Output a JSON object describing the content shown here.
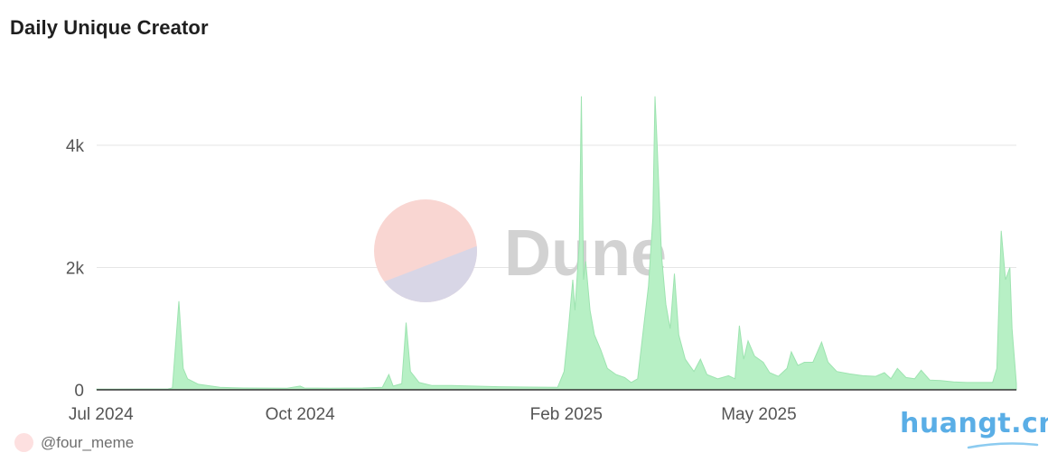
{
  "header": {
    "title": "Daily Unique Creator"
  },
  "watermark": {
    "text": "Dune"
  },
  "footer": {
    "username": "@four_meme",
    "brand": "huangt.cn"
  },
  "colors": {
    "area_fill": "#b7f0c5",
    "area_stroke": "#9de3b0",
    "grid": "#e6e6e6",
    "axis_text": "#555555",
    "watermark_circle_top": "#f9d6d2",
    "watermark_circle_bottom": "#d8d6e6",
    "brand": "#5aaee6"
  },
  "chart_data": {
    "type": "area",
    "title": "Daily Unique Creator",
    "xlabel": "",
    "ylabel": "",
    "x_range": [
      "2024-06-29",
      "2025-08-28"
    ],
    "ylim": [
      0,
      4900
    ],
    "y_ticks": [
      0,
      2000,
      4000
    ],
    "y_tick_labels": [
      "0",
      "2k",
      "4k"
    ],
    "x_ticks": [
      "2024-07-01",
      "2024-10-01",
      "2025-02-01",
      "2025-05-01"
    ],
    "x_tick_labels": [
      "Jul 2024",
      "Oct 2024",
      "Feb 2025",
      "May 2025"
    ],
    "grid": true,
    "legend": "none",
    "series": [
      {
        "points": [
          [
            "2024-06-29",
            10
          ],
          [
            "2024-08-01",
            15
          ],
          [
            "2024-08-03",
            30
          ],
          [
            "2024-08-06",
            1450
          ],
          [
            "2024-08-08",
            350
          ],
          [
            "2024-08-10",
            180
          ],
          [
            "2024-08-15",
            90
          ],
          [
            "2024-08-25",
            40
          ],
          [
            "2024-09-05",
            30
          ],
          [
            "2024-09-25",
            25
          ],
          [
            "2024-10-01",
            60
          ],
          [
            "2024-10-03",
            30
          ],
          [
            "2024-10-15",
            25
          ],
          [
            "2024-10-30",
            30
          ],
          [
            "2024-11-08",
            40
          ],
          [
            "2024-11-11",
            250
          ],
          [
            "2024-11-13",
            60
          ],
          [
            "2024-11-17",
            100
          ],
          [
            "2024-11-19",
            1100
          ],
          [
            "2024-11-21",
            300
          ],
          [
            "2024-11-25",
            120
          ],
          [
            "2024-12-01",
            70
          ],
          [
            "2024-12-10",
            70
          ],
          [
            "2024-12-20",
            60
          ],
          [
            "2025-01-01",
            50
          ],
          [
            "2025-01-15",
            45
          ],
          [
            "2025-01-28",
            40
          ],
          [
            "2025-01-31",
            300
          ],
          [
            "2025-02-02",
            1000
          ],
          [
            "2025-02-04",
            1800
          ],
          [
            "2025-02-05",
            1300
          ],
          [
            "2025-02-07",
            2400
          ],
          [
            "2025-02-08",
            4800
          ],
          [
            "2025-02-09",
            1800
          ],
          [
            "2025-02-10",
            2100
          ],
          [
            "2025-02-12",
            1300
          ],
          [
            "2025-02-14",
            900
          ],
          [
            "2025-02-17",
            650
          ],
          [
            "2025-02-20",
            350
          ],
          [
            "2025-02-24",
            250
          ],
          [
            "2025-02-28",
            200
          ],
          [
            "2025-03-03",
            120
          ],
          [
            "2025-03-06",
            180
          ],
          [
            "2025-03-09",
            1100
          ],
          [
            "2025-03-11",
            1700
          ],
          [
            "2025-03-13",
            2800
          ],
          [
            "2025-03-14",
            4800
          ],
          [
            "2025-03-15",
            4000
          ],
          [
            "2025-03-17",
            2200
          ],
          [
            "2025-03-19",
            1400
          ],
          [
            "2025-03-21",
            1000
          ],
          [
            "2025-03-23",
            1900
          ],
          [
            "2025-03-25",
            900
          ],
          [
            "2025-03-28",
            500
          ],
          [
            "2025-04-01",
            300
          ],
          [
            "2025-04-04",
            500
          ],
          [
            "2025-04-07",
            250
          ],
          [
            "2025-04-12",
            180
          ],
          [
            "2025-04-17",
            230
          ],
          [
            "2025-04-20",
            180
          ],
          [
            "2025-04-22",
            1050
          ],
          [
            "2025-04-24",
            500
          ],
          [
            "2025-04-26",
            800
          ],
          [
            "2025-04-29",
            550
          ],
          [
            "2025-05-03",
            450
          ],
          [
            "2025-05-06",
            280
          ],
          [
            "2025-05-10",
            220
          ],
          [
            "2025-05-14",
            350
          ],
          [
            "2025-05-16",
            620
          ],
          [
            "2025-05-19",
            400
          ],
          [
            "2025-05-22",
            450
          ],
          [
            "2025-05-26",
            450
          ],
          [
            "2025-05-30",
            780
          ],
          [
            "2025-06-02",
            450
          ],
          [
            "2025-06-06",
            300
          ],
          [
            "2025-06-12",
            260
          ],
          [
            "2025-06-18",
            230
          ],
          [
            "2025-06-24",
            220
          ],
          [
            "2025-06-28",
            280
          ],
          [
            "2025-07-01",
            180
          ],
          [
            "2025-07-04",
            350
          ],
          [
            "2025-07-08",
            200
          ],
          [
            "2025-07-12",
            180
          ],
          [
            "2025-07-15",
            320
          ],
          [
            "2025-07-19",
            160
          ],
          [
            "2025-07-24",
            150
          ],
          [
            "2025-07-30",
            130
          ],
          [
            "2025-08-05",
            120
          ],
          [
            "2025-08-17",
            120
          ],
          [
            "2025-08-19",
            350
          ],
          [
            "2025-08-21",
            2600
          ],
          [
            "2025-08-23",
            1800
          ],
          [
            "2025-08-25",
            2000
          ],
          [
            "2025-08-26",
            1000
          ],
          [
            "2025-08-28",
            100
          ]
        ]
      }
    ]
  }
}
